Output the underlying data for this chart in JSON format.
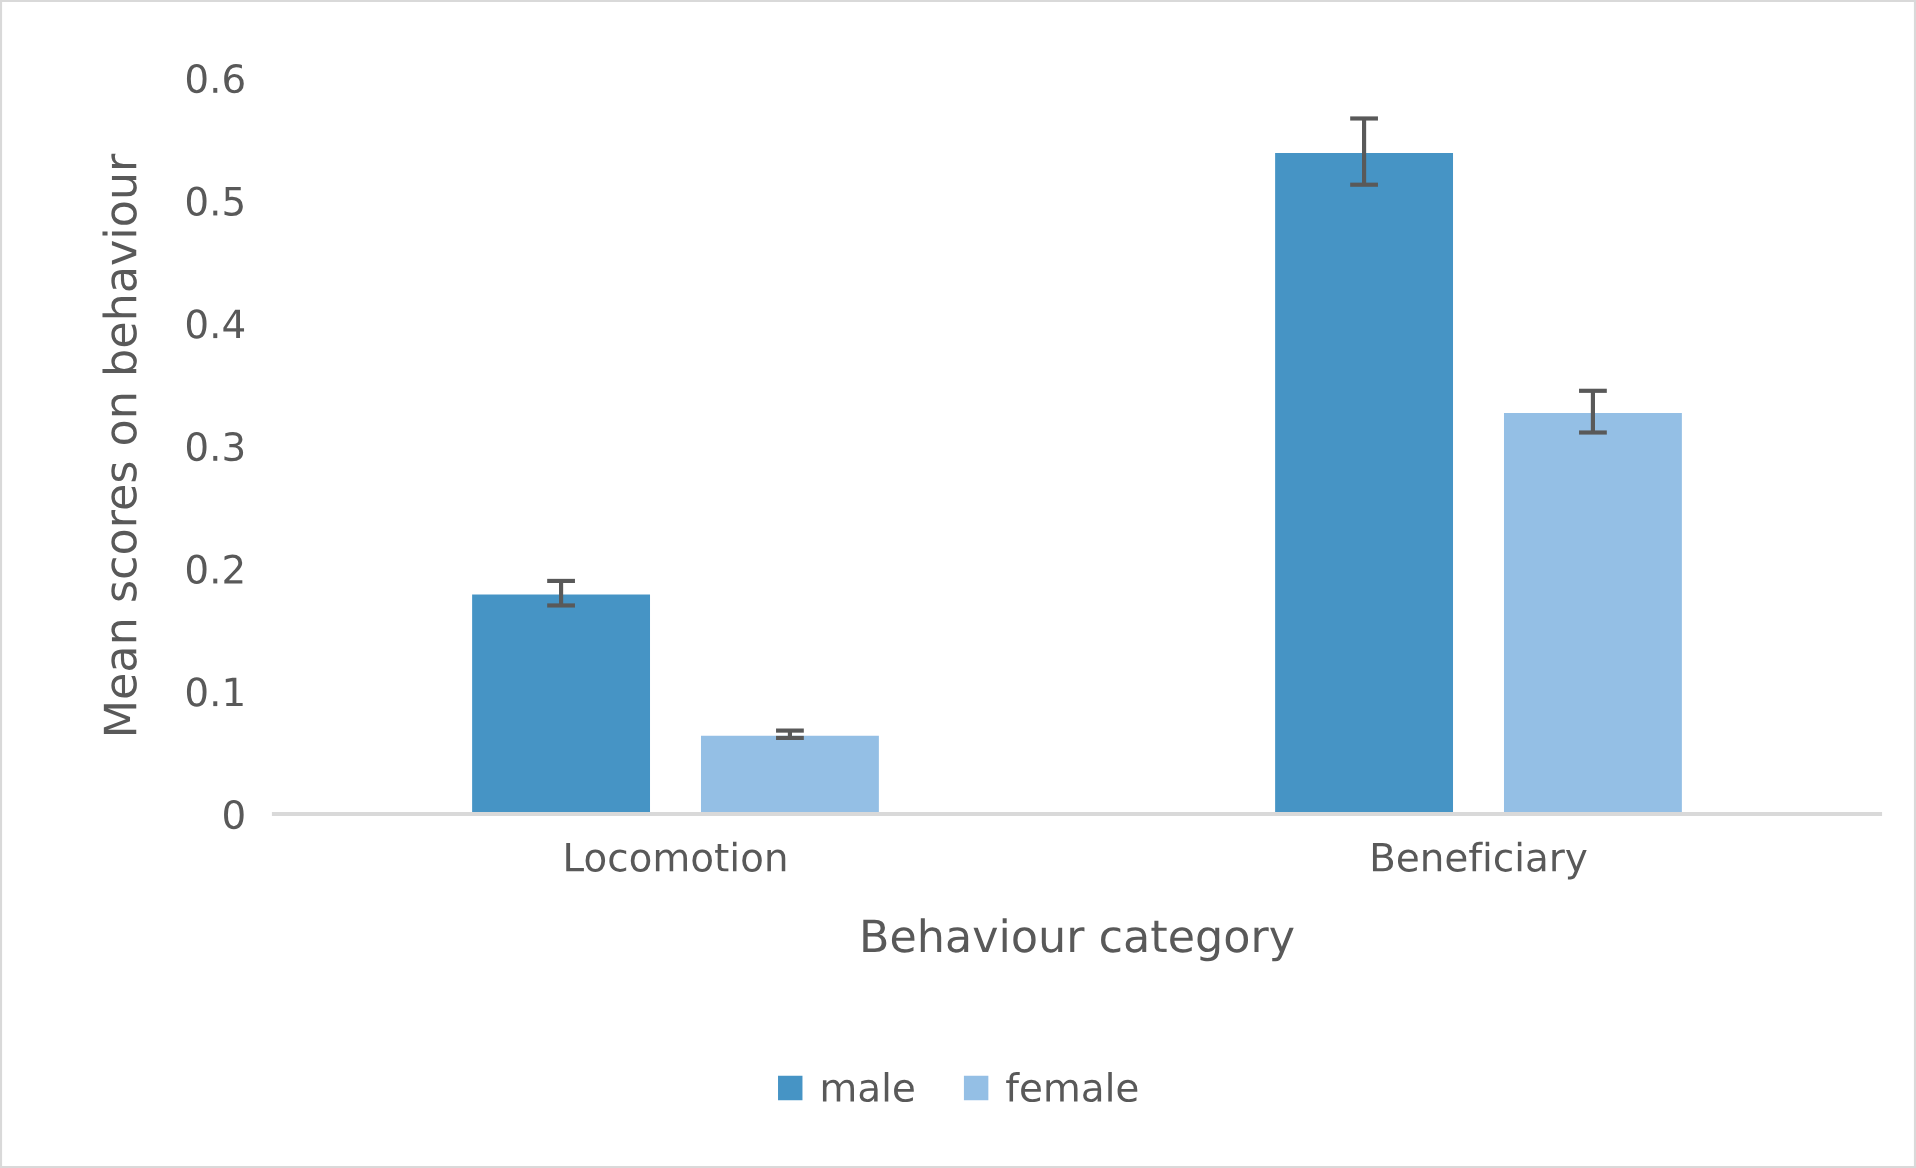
{
  "chart_data": {
    "type": "bar",
    "xlabel": "Behaviour category",
    "ylabel": "Mean scores on behaviour",
    "categories": [
      "Locomotion",
      "Beneficiary"
    ],
    "series": [
      {
        "name": "male",
        "color": "#4694c5",
        "values": [
          0.18,
          0.54
        ],
        "errors": [
          0.01,
          0.027
        ]
      },
      {
        "name": "female",
        "color": "#94bfe5",
        "values": [
          0.065,
          0.328
        ],
        "errors": [
          0.003,
          0.017
        ]
      }
    ],
    "ylim": [
      0,
      0.6
    ],
    "yticks": [
      {
        "value": 0,
        "label": "0"
      },
      0.1,
      0.2,
      0.3,
      0.4,
      0.5,
      0.6
    ],
    "grid": false,
    "legend": "bottom"
  }
}
